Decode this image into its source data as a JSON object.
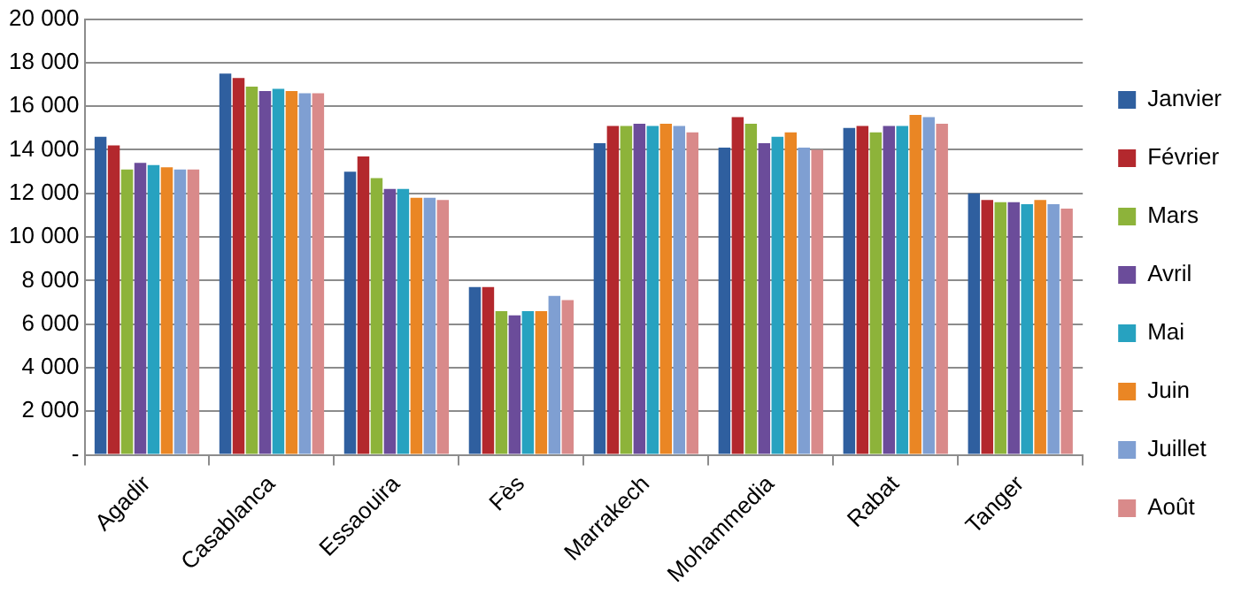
{
  "chart_data": {
    "type": "bar",
    "categories": [
      "Agadir",
      "Casablanca",
      "Essaouira",
      "Fès",
      "Marrakech",
      "Mohammedia",
      "Rabat",
      "Tanger"
    ],
    "series": [
      {
        "name": "Janvier",
        "color": "#2f5f9f",
        "values": [
          14600,
          17500,
          13000,
          7700,
          14300,
          14100,
          15000,
          12000
        ]
      },
      {
        "name": "Février",
        "color": "#b3282d",
        "values": [
          14200,
          17300,
          13700,
          7700,
          15100,
          15500,
          15100,
          11700
        ]
      },
      {
        "name": "Mars",
        "color": "#8db33a",
        "values": [
          13100,
          16900,
          12700,
          6600,
          15100,
          15200,
          14800,
          11600
        ]
      },
      {
        "name": "Avril",
        "color": "#6b4c9a",
        "values": [
          13400,
          16700,
          12200,
          6400,
          15200,
          14300,
          15100,
          11600
        ]
      },
      {
        "name": "Mai",
        "color": "#27a2c0",
        "values": [
          13300,
          16800,
          12200,
          6600,
          15100,
          14600,
          15100,
          11500
        ]
      },
      {
        "name": "Juin",
        "color": "#ea8624",
        "values": [
          13200,
          16700,
          11800,
          6600,
          15200,
          14800,
          15600,
          11700
        ]
      },
      {
        "name": "Juillet",
        "color": "#7f9fd2",
        "values": [
          13100,
          16600,
          11800,
          7300,
          15100,
          14100,
          15500,
          11500
        ]
      },
      {
        "name": "Août",
        "color": "#d98a8a",
        "values": [
          13100,
          16600,
          11700,
          7100,
          14800,
          14000,
          15200,
          11300
        ]
      }
    ],
    "ylim": [
      0,
      20000
    ],
    "yticks": [
      {
        "value": 0,
        "label": "-"
      },
      {
        "value": 2000,
        "label": "2 000"
      },
      {
        "value": 4000,
        "label": "4 000"
      },
      {
        "value": 6000,
        "label": "6 000"
      },
      {
        "value": 8000,
        "label": "8 000"
      },
      {
        "value": 10000,
        "label": "10 000"
      },
      {
        "value": 12000,
        "label": "12 000"
      },
      {
        "value": 14000,
        "label": "14 000"
      },
      {
        "value": 16000,
        "label": "16 000"
      },
      {
        "value": 18000,
        "label": "18 000"
      },
      {
        "value": 20000,
        "label": "20 000"
      }
    ],
    "grid": "y",
    "legend": "right"
  }
}
